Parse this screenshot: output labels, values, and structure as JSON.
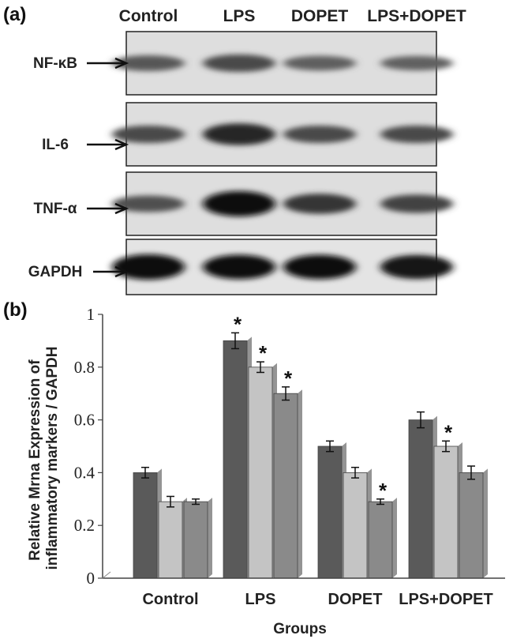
{
  "panel_a": {
    "label": "(a)",
    "lanes": [
      "Control",
      "LPS",
      "DOPET",
      "LPS+DOPET"
    ],
    "rows": [
      {
        "name": "NF-κB",
        "intensity": [
          0.45,
          0.55,
          0.4,
          0.38
        ]
      },
      {
        "name": "IL-6",
        "intensity": [
          0.55,
          0.8,
          0.55,
          0.55
        ]
      },
      {
        "name": "TNF-α",
        "intensity": [
          0.5,
          1.0,
          0.7,
          0.6
        ]
      },
      {
        "name": "GAPDH",
        "intensity": [
          1.0,
          0.95,
          0.95,
          0.92
        ]
      }
    ]
  },
  "chart_data": {
    "type": "bar",
    "panel_label": "(b)",
    "title": "",
    "xlabel": "Groups",
    "ylabel": "Relative Mrna Expression of inflammatory markers / GAPDH",
    "ylabel_lines": [
      "Relative Mrna Expression of",
      "inflammatory markers / GAPDH"
    ],
    "ylim": [
      0,
      1
    ],
    "yticks": [
      "0",
      "0.2",
      "0.4",
      "0.6",
      "0.8",
      "1"
    ],
    "categories": [
      "Control",
      "LPS",
      "DOPET",
      "LPS+DOPET"
    ],
    "series": [
      {
        "values": [
          0.4,
          0.9,
          0.5,
          0.6
        ],
        "errors": [
          0.02,
          0.03,
          0.02,
          0.03
        ],
        "significant": [
          false,
          true,
          false,
          false
        ],
        "color": "#5a5a5a"
      },
      {
        "values": [
          0.29,
          0.8,
          0.4,
          0.5
        ],
        "errors": [
          0.02,
          0.02,
          0.02,
          0.02
        ],
        "significant": [
          false,
          true,
          false,
          true
        ],
        "color": "#c4c4c4"
      },
      {
        "values": [
          0.29,
          0.7,
          0.29,
          0.4
        ],
        "errors": [
          0.01,
          0.025,
          0.01,
          0.025
        ],
        "significant": [
          false,
          true,
          true,
          false
        ],
        "color": "#8a8a8a"
      }
    ],
    "significance_marker": "*",
    "grid": false,
    "legend": "none"
  }
}
